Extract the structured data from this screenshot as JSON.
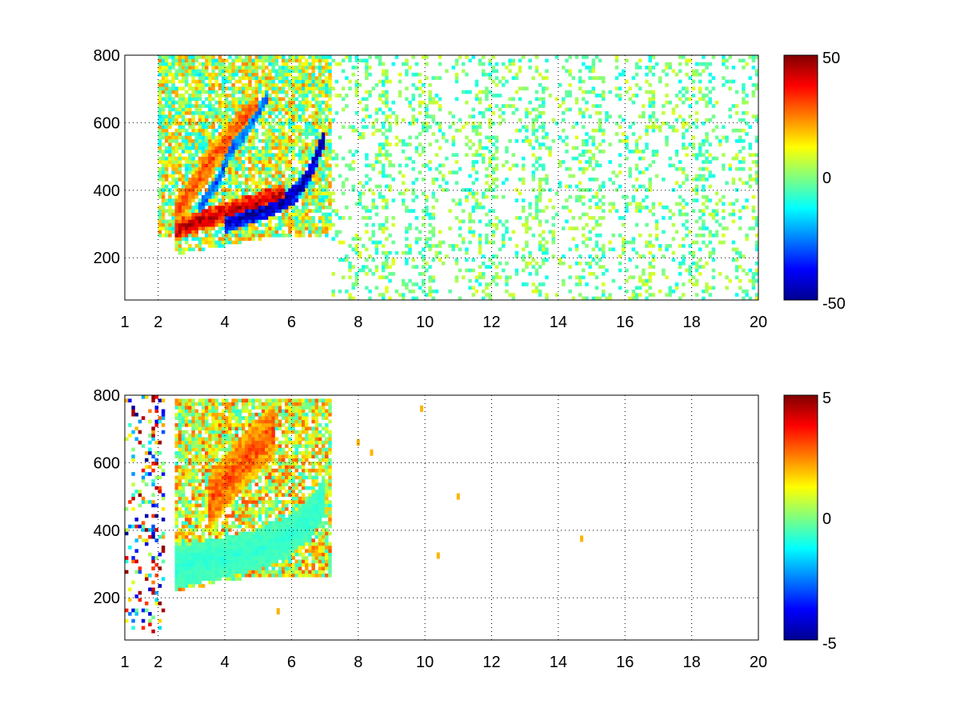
{
  "chart_data": [
    {
      "type": "heatmap",
      "title": "",
      "xlabel": "",
      "ylabel": "",
      "xlim": [
        1,
        20
      ],
      "ylim": [
        75,
        800
      ],
      "x_ticks": [
        1,
        2,
        4,
        6,
        8,
        10,
        12,
        14,
        16,
        18,
        20
      ],
      "y_ticks": [
        200,
        400,
        600,
        800
      ],
      "grid": true,
      "colormap": "jet",
      "colorbar": {
        "range": [
          -50,
          50
        ],
        "ticks": [
          50,
          0,
          -50
        ],
        "tick_labels": [
          "50",
          "0",
          "-50"
        ]
      },
      "features": [
        {
          "kind": "band",
          "x": [
            2.5,
            3.0,
            3.5,
            4.0,
            4.5,
            5.0,
            5.5,
            5.8
          ],
          "y": [
            280,
            300,
            320,
            335,
            350,
            365,
            380,
            390
          ],
          "width": 30,
          "value": 45
        },
        {
          "kind": "band",
          "x": [
            4.0,
            4.5,
            5.0,
            5.5,
            6.0,
            6.5,
            7.0
          ],
          "y": [
            300,
            320,
            335,
            355,
            380,
            440,
            560
          ],
          "width": 28,
          "value": -48
        },
        {
          "kind": "band",
          "x": [
            2.5,
            3.0,
            3.5,
            4.0,
            4.5,
            5.0
          ],
          "y": [
            330,
            400,
            480,
            540,
            600,
            650
          ],
          "width": 45,
          "value": 30
        },
        {
          "kind": "band",
          "x": [
            3.2,
            3.8,
            4.2,
            4.8,
            5.3
          ],
          "y": [
            340,
            430,
            520,
            600,
            680
          ],
          "width": 22,
          "value": -30
        },
        {
          "kind": "region",
          "x_range": [
            2.0,
            7.2
          ],
          "y_range": [
            200,
            800
          ],
          "value_range": [
            -15,
            25
          ]
        },
        {
          "kind": "scatter",
          "x_range": [
            7.2,
            20
          ],
          "y_range": [
            75,
            800
          ],
          "value_range": [
            -12,
            10
          ]
        }
      ]
    },
    {
      "type": "heatmap",
      "title": "",
      "xlabel": "",
      "ylabel": "",
      "xlim": [
        1,
        20
      ],
      "ylim": [
        75,
        800
      ],
      "x_ticks": [
        1,
        2,
        4,
        6,
        8,
        10,
        12,
        14,
        16,
        18,
        20
      ],
      "y_ticks": [
        200,
        400,
        600,
        800
      ],
      "grid": true,
      "colormap": "jet",
      "colorbar": {
        "range": [
          -5,
          5
        ],
        "ticks": [
          5,
          0,
          -5
        ],
        "tick_labels": [
          "5",
          "0",
          "-5"
        ]
      },
      "features": [
        {
          "kind": "region",
          "x_range": [
            2.5,
            7.2
          ],
          "y_range": [
            220,
            790
          ],
          "value_range": [
            -1,
            3
          ]
        },
        {
          "kind": "band",
          "x": [
            2.5,
            3.0,
            3.5,
            4.0,
            4.5,
            5.0,
            5.5,
            6.0,
            6.5,
            7.0
          ],
          "y": [
            290,
            300,
            310,
            320,
            330,
            345,
            360,
            390,
            430,
            500
          ],
          "width": 60,
          "value": -0.8
        },
        {
          "kind": "band",
          "x": [
            3.5,
            4.0,
            4.5,
            5.0,
            5.5
          ],
          "y": [
            480,
            540,
            600,
            650,
            700
          ],
          "width": 80,
          "value": 3
        },
        {
          "kind": "scatter",
          "x_range": [
            1.0,
            2.2
          ],
          "y_range": [
            100,
            800
          ],
          "value_range": [
            -5,
            5
          ]
        },
        {
          "kind": "points",
          "x": [
            8.0,
            8.4,
            9.9,
            10.4,
            11.0,
            14.7,
            5.6
          ],
          "y": [
            660,
            630,
            760,
            325,
            500,
            375,
            160
          ],
          "value": 2
        }
      ]
    }
  ]
}
